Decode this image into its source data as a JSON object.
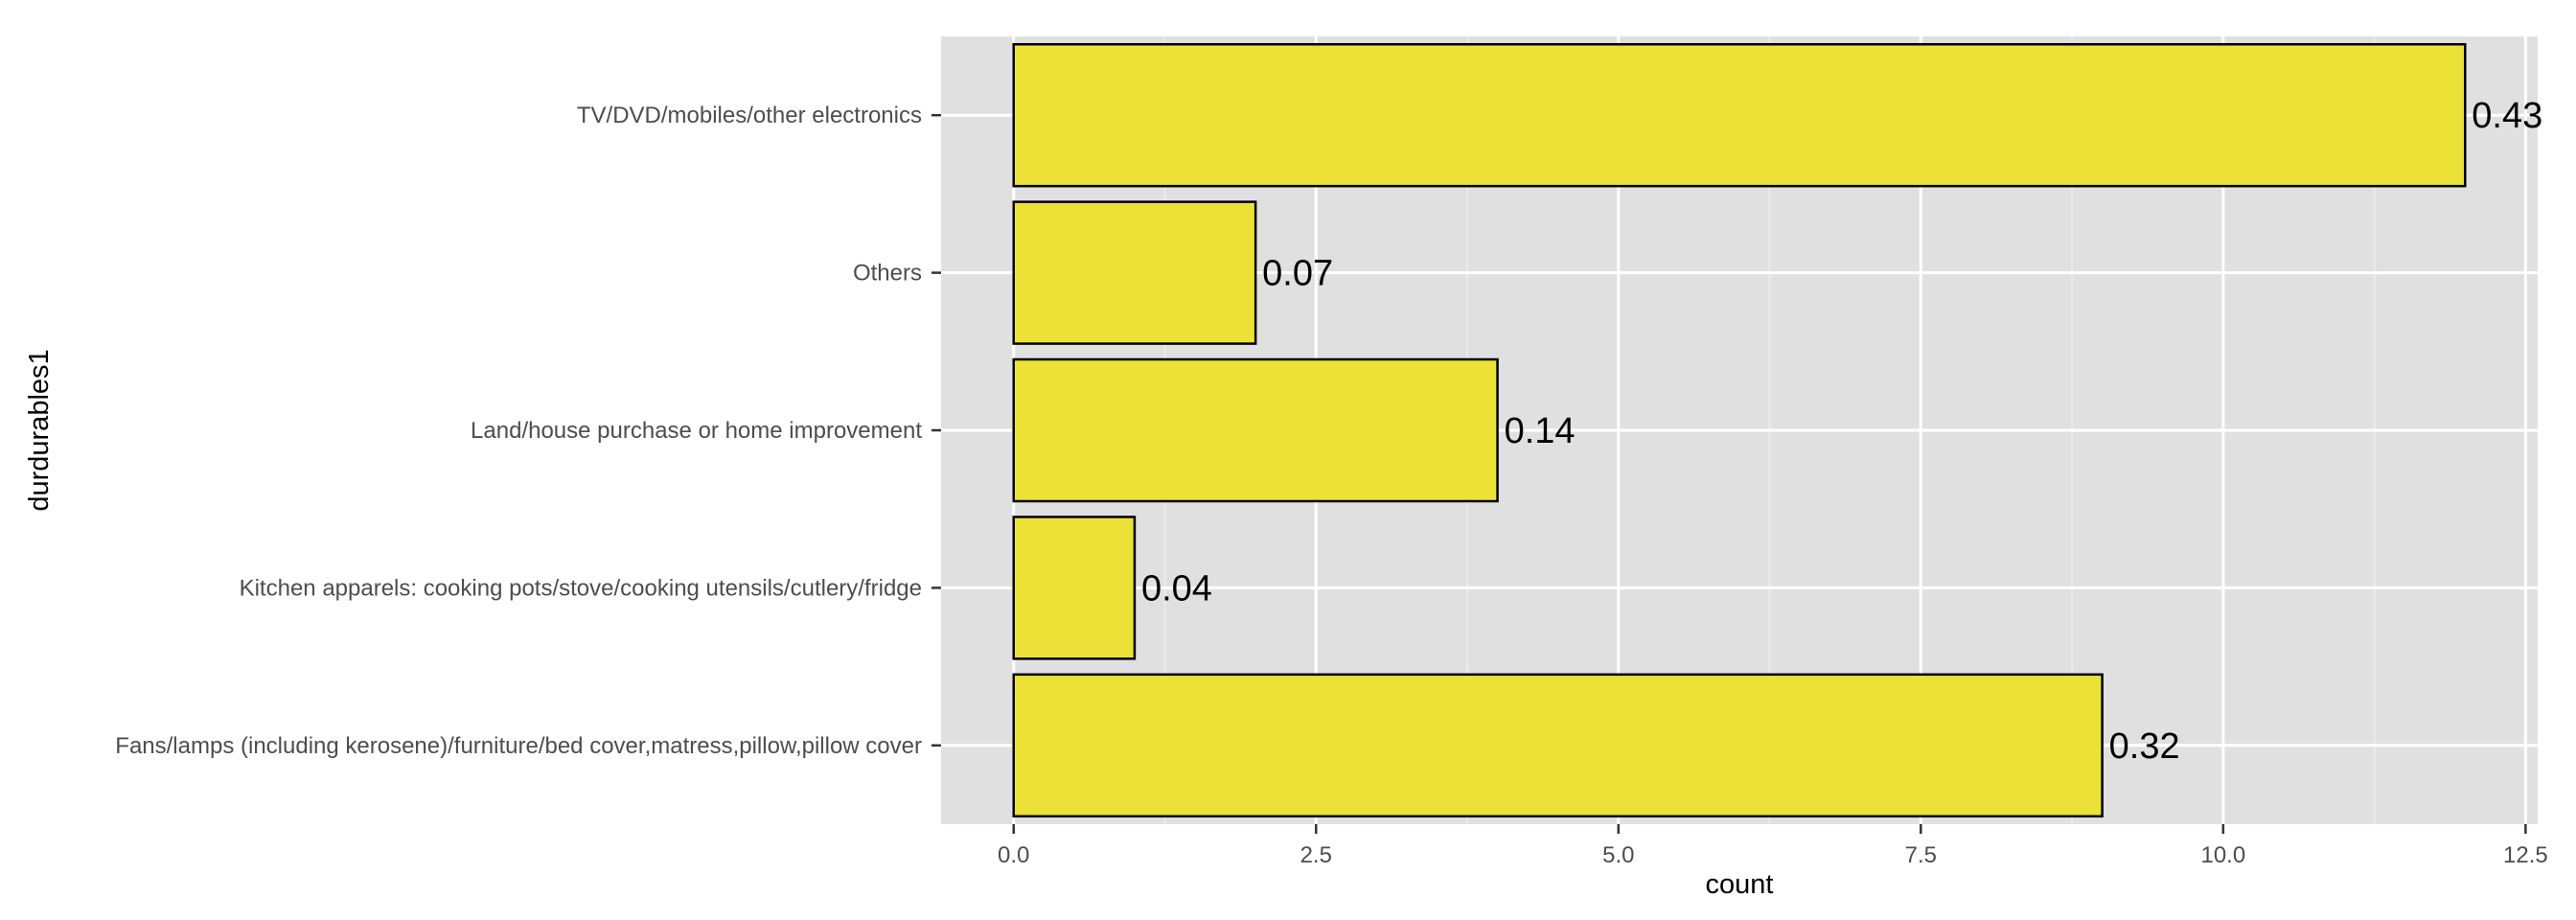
{
  "chart_data": {
    "type": "bar",
    "orientation": "horizontal",
    "xlabel": "count",
    "ylabel": "durdurables1",
    "xlim": [
      -0.6,
      12.6
    ],
    "x_ticks": [
      0.0,
      2.5,
      5.0,
      7.5,
      10.0,
      12.5
    ],
    "x_tick_labels": [
      "0.0",
      "2.5",
      "5.0",
      "7.5",
      "10.0",
      "12.5"
    ],
    "categories": [
      "Fans/lamps (including kerosene)/furniture/bed cover,matress,pillow,pillow cover",
      "Kitchen apparels: cooking pots/stove/cooking utensils/cutlery/fridge",
      "Land/house purchase or home improvement",
      "Others",
      "TV/DVD/mobiles/other electronics"
    ],
    "values": [
      9,
      1,
      4,
      2,
      12
    ],
    "data_labels": [
      "0.32",
      "0.04",
      "0.14",
      "0.07",
      "0.43"
    ],
    "grid": true,
    "legend": "none",
    "colors": {
      "bar_fill": "#ece237",
      "bar_stroke": "#000000",
      "panel_bg": "#e0e0e0",
      "grid_major": "#ffffff",
      "grid_minor": "#ebebeb",
      "tick_text": "#4d4d4d"
    }
  }
}
